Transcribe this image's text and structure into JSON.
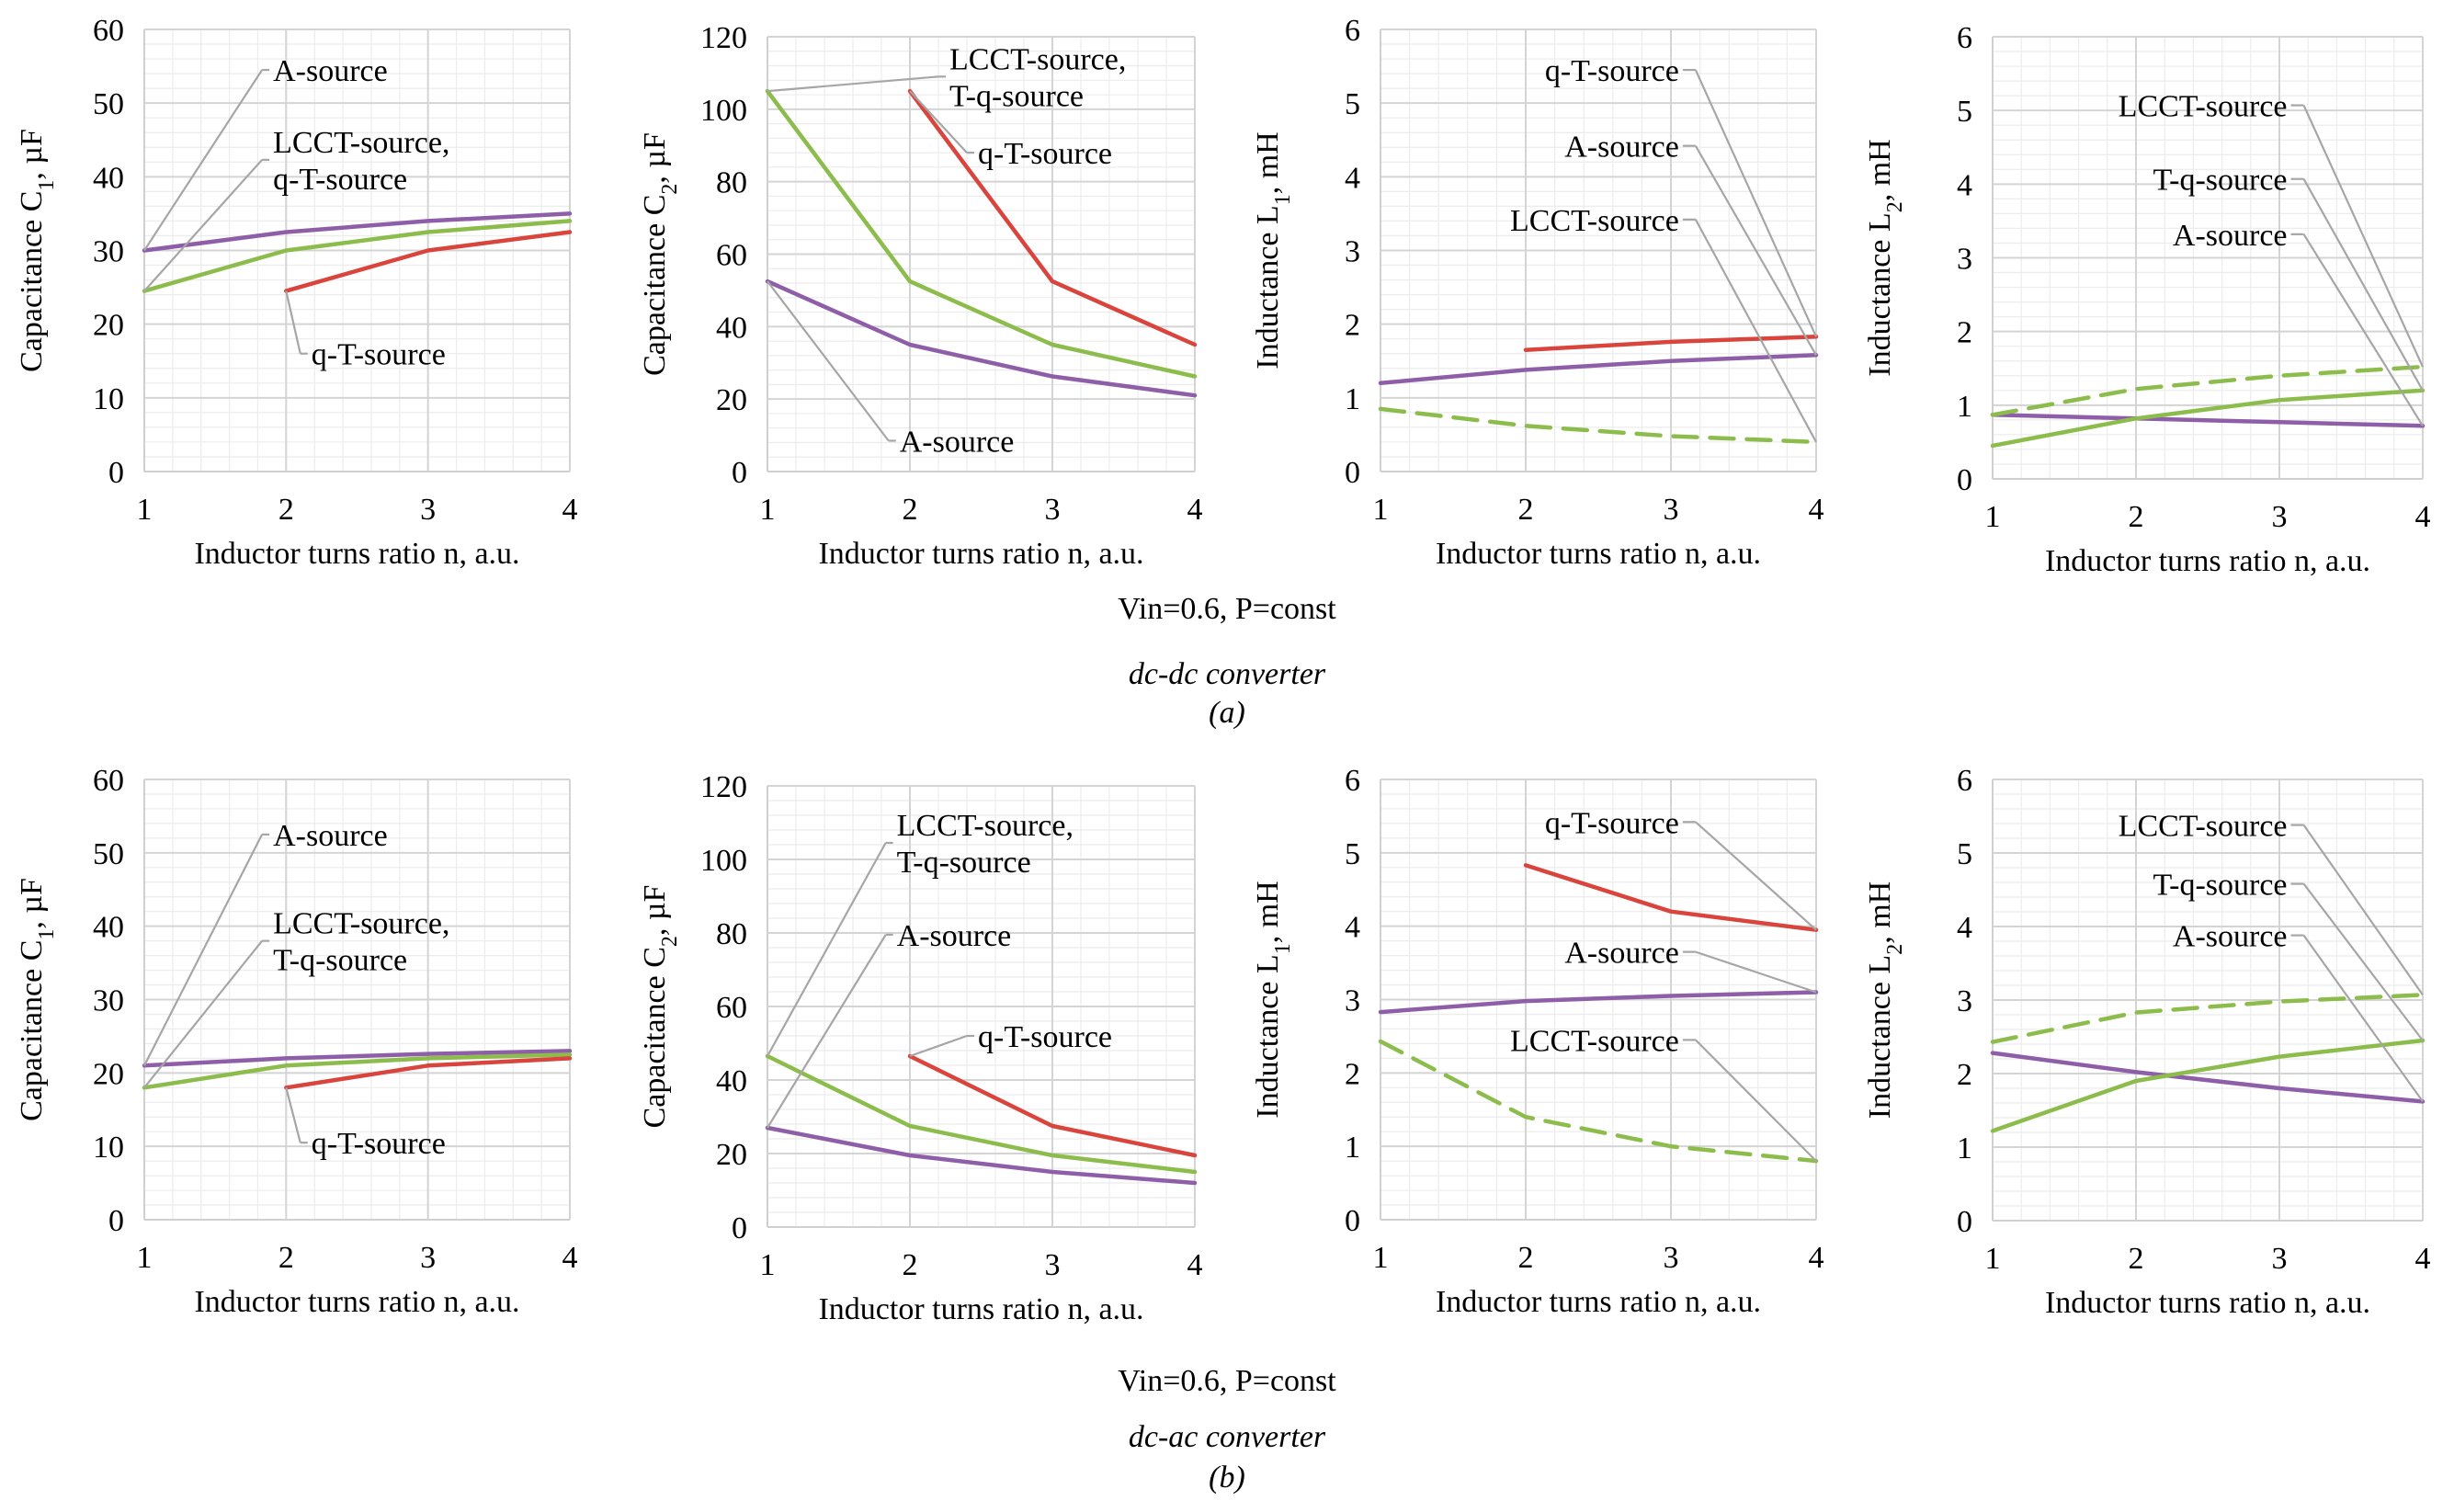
{
  "chart_data": [
    {
      "id": "a1",
      "type": "line",
      "ylabel": "Capacitance C",
      "ylabel_sub": "1",
      "ylabel_unit": ", µF",
      "xlabel": "Inductor turns ratio n, a.u.",
      "x": [
        1,
        2,
        3,
        4
      ],
      "ylim": [
        0,
        60
      ],
      "ytick_step": 10,
      "series": [
        {
          "name": "A-source",
          "color": "#8e5fa8",
          "dashed": false,
          "points": [
            [
              1,
              30
            ],
            [
              2,
              32.5
            ],
            [
              3,
              34
            ],
            [
              4,
              35
            ]
          ]
        },
        {
          "name": "LCCT-source, q-T-source",
          "color": "#8cbd4c",
          "dashed": false,
          "points": [
            [
              1,
              24.5
            ],
            [
              2,
              30
            ],
            [
              3,
              32.5
            ],
            [
              4,
              34
            ]
          ]
        },
        {
          "name": "q-T-source",
          "color": "#d9453c",
          "dashed": false,
          "points": [
            [
              2,
              24.5
            ],
            [
              3,
              30
            ],
            [
              4,
              32.5
            ]
          ]
        }
      ],
      "annotations": [
        {
          "lines": [
            "A-source"
          ],
          "text_at": [
            1.83,
            54.5
          ],
          "anchor": [
            1,
            30
          ]
        },
        {
          "lines": [
            "LCCT-source,",
            "q-T-source"
          ],
          "text_at": [
            1.83,
            42.3
          ],
          "anchor": [
            1,
            24.5
          ]
        },
        {
          "lines": [
            "q-T-source"
          ],
          "text_at": [
            2.1,
            16
          ],
          "anchor": [
            2,
            24.5
          ]
        }
      ]
    },
    {
      "id": "a2",
      "type": "line",
      "ylabel": "Capacitance C",
      "ylabel_sub": "2",
      "ylabel_unit": ", µF",
      "xlabel": "Inductor turns ratio n, a.u.",
      "x": [
        1,
        2,
        3,
        4
      ],
      "ylim": [
        0,
        120
      ],
      "ytick_step": 20,
      "series": [
        {
          "name": "A-source",
          "color": "#8e5fa8",
          "dashed": false,
          "points": [
            [
              1,
              52.5
            ],
            [
              2,
              35
            ],
            [
              3,
              26.25
            ],
            [
              4,
              21
            ]
          ]
        },
        {
          "name": "LCCT-source, T-q-source",
          "color": "#8cbd4c",
          "dashed": false,
          "points": [
            [
              1,
              105
            ],
            [
              2,
              52.5
            ],
            [
              3,
              35
            ],
            [
              4,
              26.25
            ]
          ]
        },
        {
          "name": "q-T-source",
          "color": "#d9453c",
          "dashed": false,
          "points": [
            [
              2,
              105
            ],
            [
              3,
              52.5
            ],
            [
              4,
              35
            ]
          ]
        }
      ],
      "annotations": [
        {
          "lines": [
            "LCCT-source,",
            "T-q-source"
          ],
          "text_at": [
            2.2,
            109
          ],
          "anchor": [
            1,
            105
          ]
        },
        {
          "lines": [
            "q-T-source"
          ],
          "text_at": [
            2.4,
            88
          ],
          "anchor": [
            2,
            105
          ]
        },
        {
          "lines": [
            "A-source"
          ],
          "text_at": [
            1.85,
            8.5
          ],
          "anchor": [
            1,
            52.5
          ]
        }
      ]
    },
    {
      "id": "a3",
      "type": "line",
      "ylabel": "Inductance L",
      "ylabel_sub": "1",
      "ylabel_unit": ", mH",
      "xlabel": "Inductor turns ratio n, a.u.",
      "x": [
        1,
        2,
        3,
        4
      ],
      "ylim": [
        0,
        6
      ],
      "ytick_step": 1,
      "series": [
        {
          "name": "A-source",
          "color": "#8e5fa8",
          "dashed": false,
          "points": [
            [
              1,
              1.2
            ],
            [
              2,
              1.38
            ],
            [
              3,
              1.5
            ],
            [
              4,
              1.58
            ]
          ]
        },
        {
          "name": "LCCT-source",
          "color": "#8cbd4c",
          "dashed": true,
          "points": [
            [
              1,
              0.85
            ],
            [
              2,
              0.62
            ],
            [
              3,
              0.48
            ],
            [
              4,
              0.4
            ]
          ]
        },
        {
          "name": "q-T-source",
          "color": "#d9453c",
          "dashed": false,
          "points": [
            [
              2,
              1.65
            ],
            [
              3,
              1.76
            ],
            [
              4,
              1.83
            ]
          ]
        }
      ],
      "annotations": [
        {
          "lines": [
            "q-T-source"
          ],
          "text_at": [
            3.17,
            5.45
          ],
          "anchor": [
            4,
            1.83
          ]
        },
        {
          "lines": [
            "A-source"
          ],
          "text_at": [
            3.17,
            4.42
          ],
          "anchor": [
            4,
            1.58
          ]
        },
        {
          "lines": [
            "LCCT-source"
          ],
          "text_at": [
            3.17,
            3.42
          ],
          "anchor": [
            4,
            0.4
          ]
        }
      ]
    },
    {
      "id": "a4",
      "type": "line",
      "ylabel": "Inductance L",
      "ylabel_sub": "2",
      "ylabel_unit": ", mH",
      "xlabel": "Inductor turns ratio n, a.u.",
      "x": [
        1,
        2,
        3,
        4
      ],
      "ylim": [
        0,
        6
      ],
      "ytick_step": 1,
      "series": [
        {
          "name": "A-source",
          "color": "#8e5fa8",
          "dashed": false,
          "points": [
            [
              1,
              0.87
            ],
            [
              2,
              0.82
            ],
            [
              3,
              0.77
            ],
            [
              4,
              0.72
            ]
          ]
        },
        {
          "name": "LCCT-source",
          "color": "#8cbd4c",
          "dashed": true,
          "points": [
            [
              1,
              0.87
            ],
            [
              2,
              1.22
            ],
            [
              3,
              1.4
            ],
            [
              4,
              1.52
            ]
          ]
        },
        {
          "name": "T-q-source",
          "color": "#8cbd4c",
          "dashed": false,
          "points": [
            [
              1,
              0.45
            ],
            [
              2,
              0.82
            ],
            [
              3,
              1.07
            ],
            [
              4,
              1.2
            ]
          ]
        }
      ],
      "annotations": [
        {
          "lines": [
            "LCCT-source"
          ],
          "text_at": [
            3.17,
            5.07
          ],
          "anchor": [
            4,
            1.52
          ]
        },
        {
          "lines": [
            "T-q-source"
          ],
          "text_at": [
            3.17,
            4.07
          ],
          "anchor": [
            4,
            1.2
          ]
        },
        {
          "lines": [
            "A-source"
          ],
          "text_at": [
            3.17,
            3.32
          ],
          "anchor": [
            4,
            0.72
          ]
        }
      ]
    },
    {
      "id": "b1",
      "type": "line",
      "ylabel": "Capacitance C",
      "ylabel_sub": "1",
      "ylabel_unit": ", µF",
      "xlabel": "Inductor turns ratio n, a.u.",
      "x": [
        1,
        2,
        3,
        4
      ],
      "ylim": [
        0,
        60
      ],
      "ytick_step": 10,
      "series": [
        {
          "name": "A-source",
          "color": "#8e5fa8",
          "dashed": false,
          "points": [
            [
              1,
              21
            ],
            [
              2,
              22
            ],
            [
              3,
              22.6
            ],
            [
              4,
              23
            ]
          ]
        },
        {
          "name": "LCCT-source, T-q-source",
          "color": "#8cbd4c",
          "dashed": false,
          "points": [
            [
              1,
              18
            ],
            [
              2,
              21
            ],
            [
              3,
              22
            ],
            [
              4,
              22.5
            ]
          ]
        },
        {
          "name": "q-T-source",
          "color": "#d9453c",
          "dashed": false,
          "points": [
            [
              2,
              18
            ],
            [
              3,
              21
            ],
            [
              4,
              22
            ]
          ]
        }
      ],
      "annotations": [
        {
          "lines": [
            "A-source"
          ],
          "text_at": [
            1.83,
            52.5
          ],
          "anchor": [
            1,
            21
          ]
        },
        {
          "lines": [
            "LCCT-source,",
            "T-q-source"
          ],
          "text_at": [
            1.83,
            38
          ],
          "anchor": [
            1,
            18
          ]
        },
        {
          "lines": [
            "q-T-source"
          ],
          "text_at": [
            2.1,
            10.5
          ],
          "anchor": [
            2,
            18
          ]
        }
      ]
    },
    {
      "id": "b2",
      "type": "line",
      "ylabel": "Capacitance C",
      "ylabel_sub": "2",
      "ylabel_unit": ", µF",
      "xlabel": "Inductor turns ratio n, a.u.",
      "x": [
        1,
        2,
        3,
        4
      ],
      "ylim": [
        0,
        120
      ],
      "ytick_step": 20,
      "series": [
        {
          "name": "A-source",
          "color": "#8e5fa8",
          "dashed": false,
          "points": [
            [
              1,
              27
            ],
            [
              2,
              19.5
            ],
            [
              3,
              15
            ],
            [
              4,
              12
            ]
          ]
        },
        {
          "name": "LCCT-source, T-q-source",
          "color": "#8cbd4c",
          "dashed": false,
          "points": [
            [
              1,
              46.5
            ],
            [
              2,
              27.5
            ],
            [
              3,
              19.5
            ],
            [
              4,
              15
            ]
          ]
        },
        {
          "name": "q-T-source",
          "color": "#d9453c",
          "dashed": false,
          "points": [
            [
              2,
              46.5
            ],
            [
              3,
              27.5
            ],
            [
              4,
              19.5
            ]
          ]
        }
      ],
      "annotations": [
        {
          "lines": [
            "LCCT-source,",
            "T-q-source"
          ],
          "text_at": [
            1.83,
            104.5
          ],
          "anchor": [
            1,
            46.5
          ]
        },
        {
          "lines": [
            "A-source"
          ],
          "text_at": [
            1.83,
            79.5
          ],
          "anchor": [
            1,
            27
          ]
        },
        {
          "lines": [
            "q-T-source"
          ],
          "text_at": [
            2.4,
            52
          ],
          "anchor": [
            2,
            46.5
          ]
        }
      ]
    },
    {
      "id": "b3",
      "type": "line",
      "ylabel": "Inductance L",
      "ylabel_sub": "1",
      "ylabel_unit": ", mH",
      "xlabel": "Inductor turns ratio n, a.u.",
      "x": [
        1,
        2,
        3,
        4
      ],
      "ylim": [
        0,
        6
      ],
      "ytick_step": 1,
      "series": [
        {
          "name": "A-source",
          "color": "#8e5fa8",
          "dashed": false,
          "points": [
            [
              1,
              2.83
            ],
            [
              2,
              2.98
            ],
            [
              3,
              3.05
            ],
            [
              4,
              3.1
            ]
          ]
        },
        {
          "name": "LCCT-source",
          "color": "#8cbd4c",
          "dashed": true,
          "points": [
            [
              1,
              2.43
            ],
            [
              2,
              1.4
            ],
            [
              3,
              1.0
            ],
            [
              4,
              0.8
            ]
          ]
        },
        {
          "name": "q-T-source",
          "color": "#d9453c",
          "dashed": false,
          "points": [
            [
              2,
              4.83
            ],
            [
              3,
              4.2
            ],
            [
              4,
              3.95
            ]
          ]
        }
      ],
      "annotations": [
        {
          "lines": [
            "q-T-source"
          ],
          "text_at": [
            3.17,
            5.42
          ],
          "anchor": [
            4,
            3.95
          ]
        },
        {
          "lines": [
            "A-source"
          ],
          "text_at": [
            3.17,
            3.65
          ],
          "anchor": [
            4,
            3.1
          ]
        },
        {
          "lines": [
            "LCCT-source"
          ],
          "text_at": [
            3.17,
            2.45
          ],
          "anchor": [
            4,
            0.8
          ]
        }
      ]
    },
    {
      "id": "b4",
      "type": "line",
      "ylabel": "Inductance L",
      "ylabel_sub": "2",
      "ylabel_unit": ", mH",
      "xlabel": "Inductor turns ratio n, a.u.",
      "x": [
        1,
        2,
        3,
        4
      ],
      "ylim": [
        0,
        6
      ],
      "ytick_step": 1,
      "series": [
        {
          "name": "A-source",
          "color": "#8e5fa8",
          "dashed": false,
          "points": [
            [
              1,
              2.28
            ],
            [
              2,
              2.02
            ],
            [
              3,
              1.8
            ],
            [
              4,
              1.62
            ]
          ]
        },
        {
          "name": "LCCT-source",
          "color": "#8cbd4c",
          "dashed": true,
          "points": [
            [
              1,
              2.43
            ],
            [
              2,
              2.83
            ],
            [
              3,
              2.98
            ],
            [
              4,
              3.07
            ]
          ]
        },
        {
          "name": "T-q-source",
          "color": "#8cbd4c",
          "dashed": false,
          "points": [
            [
              1,
              1.22
            ],
            [
              2,
              1.9
            ],
            [
              3,
              2.23
            ],
            [
              4,
              2.45
            ]
          ]
        }
      ],
      "annotations": [
        {
          "lines": [
            "LCCT-source"
          ],
          "text_at": [
            3.17,
            5.38
          ],
          "anchor": [
            4,
            3.07
          ]
        },
        {
          "lines": [
            "T-q-source"
          ],
          "text_at": [
            3.17,
            4.58
          ],
          "anchor": [
            4,
            2.45
          ]
        },
        {
          "lines": [
            "A-source"
          ],
          "text_at": [
            3.17,
            3.88
          ],
          "anchor": [
            4,
            1.62
          ]
        }
      ]
    }
  ],
  "captions": {
    "a": {
      "condition": "Vin=0.6, P=const",
      "converter": "dc-dc converter",
      "label": "(a)"
    },
    "b": {
      "condition": "Vin=0.6, P=const",
      "converter": "dc-ac converter",
      "label": "(b)"
    }
  }
}
